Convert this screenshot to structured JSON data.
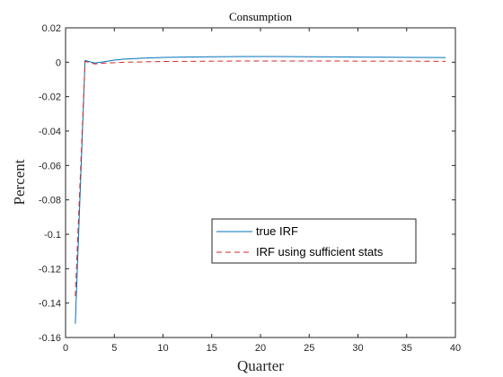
{
  "chart_data": {
    "type": "line",
    "title": "Consumption",
    "xlabel": "Quarter",
    "ylabel": "Percent",
    "xlim": [
      0,
      40
    ],
    "ylim": [
      -0.16,
      0.02
    ],
    "xticks": [
      0,
      5,
      10,
      15,
      20,
      25,
      30,
      35,
      40
    ],
    "yticks": [
      0.02,
      0,
      -0.02,
      -0.04,
      -0.06,
      -0.08,
      -0.1,
      -0.12,
      -0.14,
      -0.16
    ],
    "xtick_labels": [
      "0",
      "5",
      "10",
      "15",
      "20",
      "25",
      "30",
      "35",
      "40"
    ],
    "ytick_labels": [
      "0.02",
      "0",
      "-0.02",
      "-0.04",
      "-0.06",
      "-0.08",
      "-0.1",
      "-0.12",
      "-0.14",
      "-0.16"
    ],
    "grid": false,
    "legend_position": "lower-right",
    "series": [
      {
        "name": "true IRF",
        "color": "#0072BD",
        "style": "solid",
        "x": [
          1,
          2,
          3,
          4,
          5,
          6,
          8,
          10,
          12,
          15,
          18,
          20,
          22,
          25,
          28,
          30,
          33,
          36,
          39
        ],
        "values": [
          -0.152,
          0.001,
          -0.0005,
          0.0003,
          0.0012,
          0.0018,
          0.0024,
          0.0028,
          0.003,
          0.0032,
          0.0033,
          0.0033,
          0.0033,
          0.0032,
          0.0031,
          0.003,
          0.0029,
          0.0028,
          0.0027
        ]
      },
      {
        "name": "IRF using sufficient stats",
        "color": "#D62728",
        "style": "dashed",
        "x": [
          1,
          2,
          3,
          4,
          5,
          6,
          8,
          10,
          12,
          15,
          18,
          20,
          22,
          25,
          28,
          30,
          33,
          36,
          39
        ],
        "values": [
          -0.136,
          0.0005,
          -0.001,
          -0.0005,
          -0.0003,
          0.0,
          0.0002,
          0.0004,
          0.0005,
          0.0006,
          0.0007,
          0.0007,
          0.0007,
          0.0007,
          0.0007,
          0.0006,
          0.0006,
          0.0006,
          0.0005
        ]
      }
    ]
  }
}
